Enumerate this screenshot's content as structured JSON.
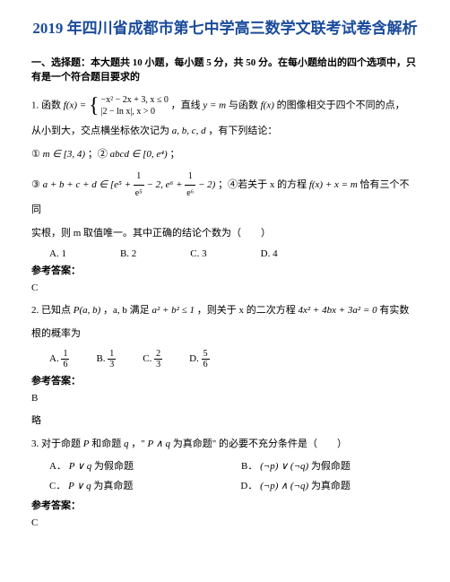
{
  "title": "2019 年四川省成都市第七中学高三数学文联考试卷含解析",
  "section1_heading": "一、选择题：本大题共 10 小题，每小题 5 分，共 50 分。在每小题给出的四个选项中，只有是一个符合题目要求的",
  "q1": {
    "prefix": "1. 函数",
    "fx": "f(x) =",
    "piece1": "−x² − 2x + 3, x ≤ 0",
    "piece2": "|2 − ln x|, x > 0",
    "mid": "，直线",
    "ym": "y = m",
    "mid2": "与函数",
    "fxx": "f(x)",
    "mid3": "的图像相交于四个不同的点，",
    "line2": "从小到大，交点横坐标依次记为",
    "abcd": "a, b, c, d",
    "line2b": "，有下列结论：",
    "c1a": "①",
    "c1b": "m ∈ [3, 4)",
    "c1c": "；②",
    "c1d": "abcd ∈ [0, e⁴)",
    "c1e": "；",
    "c2a": "③",
    "c2b": "a + b + c + d ∈",
    "c2open": "[",
    "c2e1": "e⁵ +",
    "c2f1num": "1",
    "c2f1den": "e⁵",
    "c2mid": "− 2, e⁶ +",
    "c2f2num": "1",
    "c2f2den": "e⁶",
    "c2end": "− 2",
    "c2close": ")",
    "c2c": "；④若关于 x 的方程",
    "c2d": "f(x) + x = m",
    "c2e": "恰有三个不同",
    "line4": "实根，则 m 取值唯一。其中正确的结论个数为（　　）",
    "oA": "A. 1",
    "oB": "B. 2",
    "oC": "C. 3",
    "oD": "D. 4",
    "ans_label": "参考答案：",
    "ans": "C"
  },
  "q2": {
    "prefix": "2. 已知点",
    "pab": "P(a, b)",
    "mid1": "，a, b 满足",
    "cond": "a² + b² ≤ 1",
    "mid2": "，则关于 x 的二次方程",
    "eq": "4x² + 4bx + 3a² = 0",
    "mid3": "有实数",
    "line2": "根的概率为",
    "oA": "A.",
    "oAf_num": "1",
    "oAf_den": "6",
    "oB": "B.",
    "oBf_num": "1",
    "oBf_den": "3",
    "oC": "C.",
    "oCf_num": "2",
    "oCf_den": "3",
    "oD": "D.",
    "oDf_num": "5",
    "oDf_den": "6",
    "ans_label": "参考答案：",
    "ans": "B",
    "skip": "略"
  },
  "q3": {
    "prefix": "3. 对于命题",
    "p": "P",
    "mid1": "和命题",
    "q": "q",
    "mid2": "，\"",
    "pq": "P ∧ q",
    "mid3": "为真命题\" 的必要不充分条件是（　　）",
    "oA": "A．",
    "oAe": "P ∨ q",
    "oAt": "为假命题",
    "oB": "B．",
    "oBe": "(¬p) ∨ (¬q)",
    "oBt": "为假命题",
    "oC": "C．",
    "oCe": "P ∨ q",
    "oCt": "为真命题",
    "oD": "D．",
    "oDe": "(¬p) ∧ (¬q)",
    "oDt": "为真命题",
    "ans_label": "参考答案：",
    "ans": "C"
  }
}
